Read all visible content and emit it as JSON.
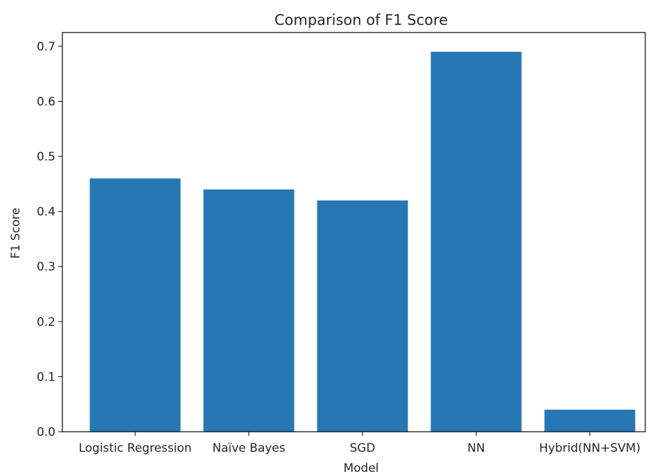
{
  "chart_data": {
    "type": "bar",
    "title": "Comparison of F1 Score",
    "xlabel": "Model",
    "ylabel": "F1 Score",
    "categories": [
      "Logistic Regression",
      "Naïve Bayes",
      "SGD",
      "NN",
      "Hybrid(NN+SVM)"
    ],
    "values": [
      0.46,
      0.44,
      0.42,
      0.69,
      0.04
    ],
    "ylim": [
      0,
      0.725
    ],
    "yticks": [
      "0.0",
      "0.1",
      "0.2",
      "0.3",
      "0.4",
      "0.5",
      "0.6",
      "0.7"
    ],
    "bar_color": "#2777b4",
    "grid": false,
    "legend": "none"
  }
}
